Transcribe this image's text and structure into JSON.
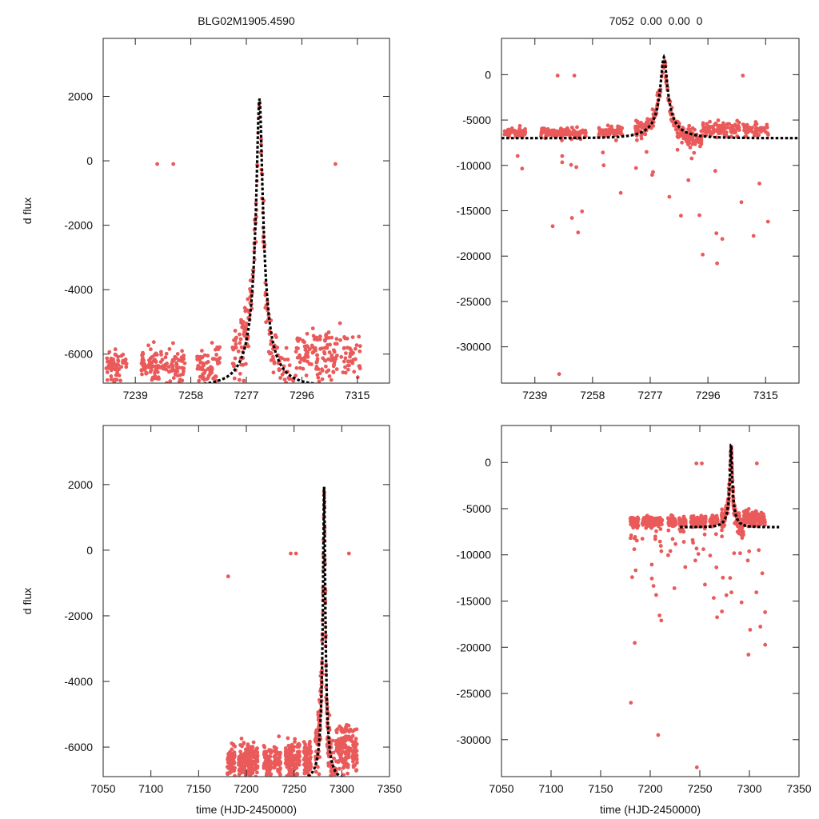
{
  "figure": {
    "title_left": "BLG02M1905.4590",
    "title_right": "7052  0.00  0.00  0",
    "colors": {
      "points": "#ea5a5a",
      "model": "#000000",
      "frame": "#222222"
    }
  },
  "chart_data": [
    {
      "type": "scatter",
      "panel": "top-left",
      "xlim": [
        7228,
        7326
      ],
      "ylim": [
        -6900,
        3800
      ],
      "xticks": [
        7239,
        7258,
        7277,
        7296,
        7315
      ],
      "yticks": [
        -6000,
        -4000,
        -2000,
        0,
        2000
      ],
      "xlabel": "",
      "ylabel": "d flux",
      "t0": 7281.5,
      "u0": 0.1,
      "tE": 10.5,
      "base": -7000,
      "amp": 8400,
      "grid": false
    },
    {
      "type": "scatter",
      "panel": "top-right",
      "xlim": [
        7228,
        7326
      ],
      "ylim": [
        -34000,
        4000
      ],
      "xticks": [
        7239,
        7258,
        7277,
        7296,
        7315
      ],
      "yticks": [
        -30000,
        -25000,
        -20000,
        -15000,
        -10000,
        -5000,
        0
      ],
      "xlabel": "",
      "ylabel": "",
      "t0": 7281.5,
      "u0": 0.1,
      "tE": 10.5,
      "base": -7000,
      "amp": 8400,
      "grid": false
    },
    {
      "type": "scatter",
      "panel": "bottom-left",
      "xlim": [
        7050,
        7350
      ],
      "ylim": [
        -6900,
        3800
      ],
      "xticks": [
        7050,
        7100,
        7150,
        7200,
        7250,
        7300,
        7350
      ],
      "yticks": [
        -6000,
        -4000,
        -2000,
        0,
        2000
      ],
      "xlabel": "time (HJD-2450000)",
      "ylabel": "d flux",
      "t0": 7281.5,
      "u0": 0.1,
      "tE": 10.5,
      "base": -7000,
      "amp": 8400,
      "model_xrange": [
        7230,
        7325
      ],
      "grid": false
    },
    {
      "type": "scatter",
      "panel": "bottom-right",
      "xlim": [
        7050,
        7350
      ],
      "ylim": [
        -34000,
        4000
      ],
      "xticks": [
        7050,
        7100,
        7150,
        7200,
        7250,
        7300,
        7350
      ],
      "yticks": [
        -30000,
        -25000,
        -20000,
        -15000,
        -10000,
        -5000,
        0
      ],
      "xlabel": "time (HJD-2450000)",
      "ylabel": "",
      "t0": 7281.5,
      "u0": 0.1,
      "tE": 10.5,
      "base": -7000,
      "amp": 8400,
      "model_xrange": [
        7230,
        7330
      ],
      "grid": false
    }
  ]
}
